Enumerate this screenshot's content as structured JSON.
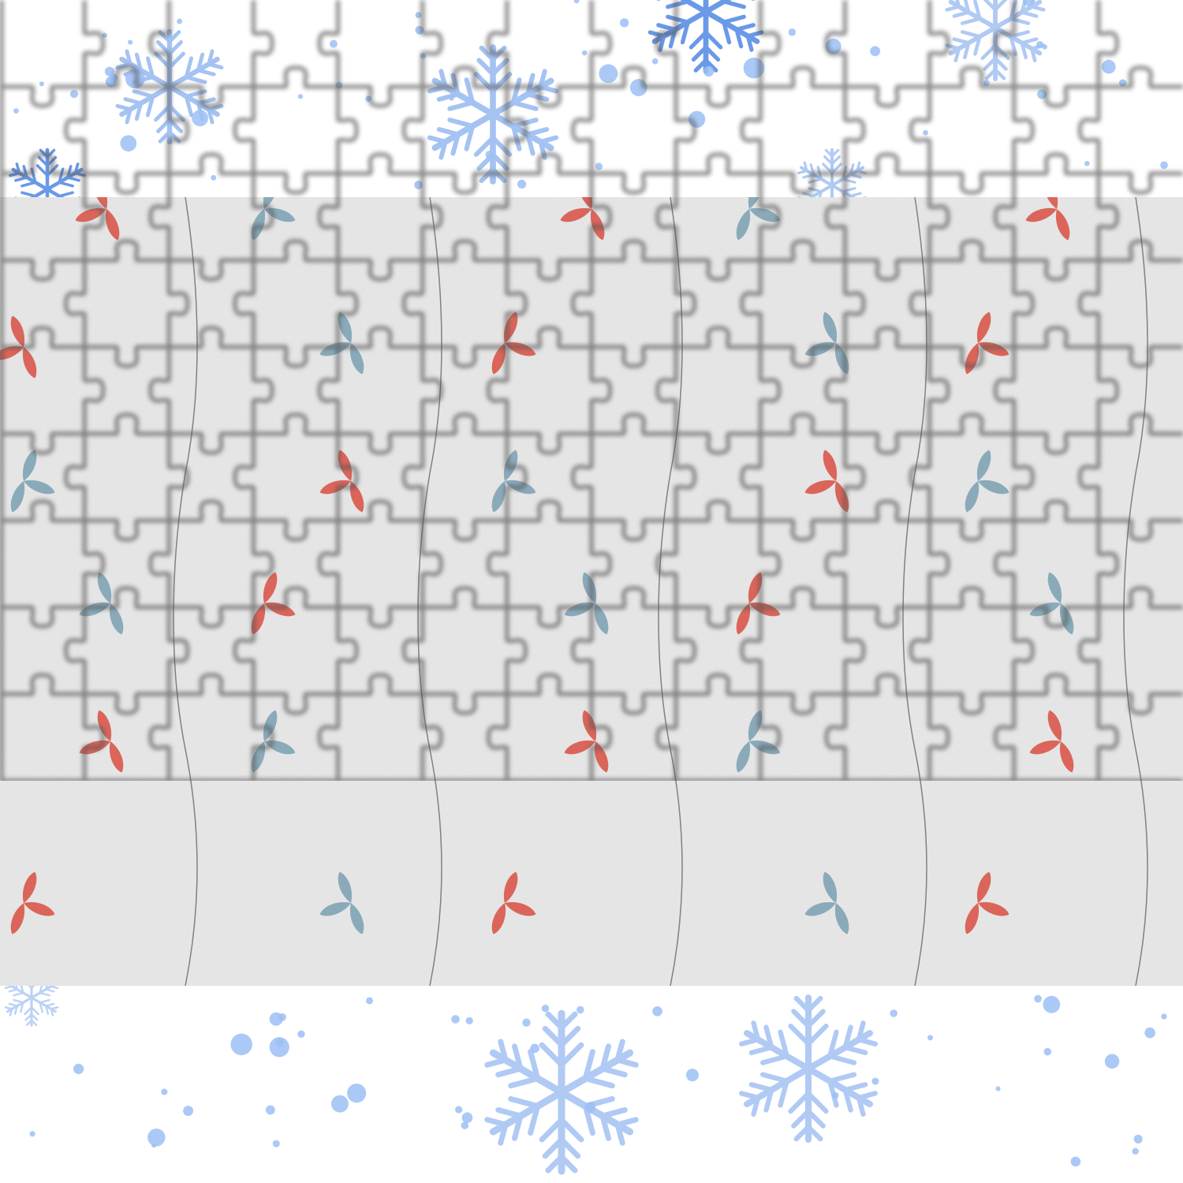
{
  "game": {
    "type": "jigsaw-puzzle",
    "grid": {
      "columns": 14,
      "rows": 9
    },
    "colors": {
      "background": "#ffffff",
      "snowflake": "#8fb5f0",
      "snowflake_dark": "#5a8fe6",
      "dot": "#9cc0f5",
      "band": "#ececec",
      "petal_red": "#d9574a",
      "petal_blue": "#7fa3b5",
      "stem": "#8a7d7d",
      "piece_edge": "#555555"
    },
    "icons": [
      "snowflake-icon",
      "flower-icon",
      "puzzle-piece-icon"
    ]
  }
}
